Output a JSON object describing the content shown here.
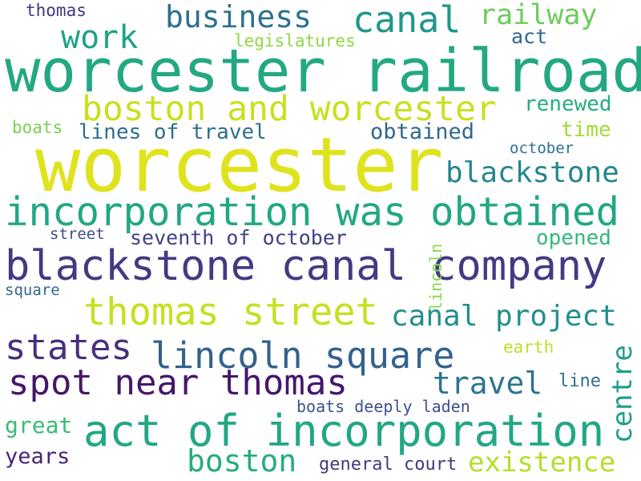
{
  "words": [
    {
      "text": "worcester",
      "color": "#dfe31e"
    },
    {
      "text": "worcester railroad",
      "color": "#23a883"
    },
    {
      "text": "blackstone canal company",
      "color": "#433a83"
    },
    {
      "text": "incorporation was obtained",
      "color": "#22a785"
    },
    {
      "text": "act of incorporation",
      "color": "#22a785"
    },
    {
      "text": "boston and worcester",
      "color": "#c8e020"
    },
    {
      "text": "thomas street",
      "color": "#c5e021"
    },
    {
      "text": "lincoln square",
      "color": "#33628d"
    },
    {
      "text": "spot near thomas",
      "color": "#46166b"
    },
    {
      "text": "states",
      "color": "#472f7d"
    },
    {
      "text": "canal",
      "color": "#1f988b"
    },
    {
      "text": "business",
      "color": "#2c718e"
    },
    {
      "text": "railway",
      "color": "#6ccd5a"
    },
    {
      "text": "work",
      "color": "#1fa287"
    },
    {
      "text": "blackstone",
      "color": "#24878e"
    },
    {
      "text": "boston",
      "color": "#25ac82"
    },
    {
      "text": "existence",
      "color": "#b5de2b"
    },
    {
      "text": "travel",
      "color": "#2a768e"
    },
    {
      "text": "canal project",
      "color": "#218f8d"
    },
    {
      "text": "centre",
      "color": "#1f9e89"
    },
    {
      "text": "renewed",
      "color": "#26ad81"
    },
    {
      "text": "time",
      "color": "#a2da37"
    },
    {
      "text": "obtained",
      "color": "#31668e"
    },
    {
      "text": "lines of travel",
      "color": "#2e6e8e"
    },
    {
      "text": "seventh of october",
      "color": "#424086"
    },
    {
      "text": "opened",
      "color": "#35b779"
    },
    {
      "text": "great",
      "color": "#3bbb75"
    },
    {
      "text": "years",
      "color": "#482576"
    },
    {
      "text": "general court",
      "color": "#443983"
    },
    {
      "text": "boats deeply laden",
      "color": "#3b528b"
    },
    {
      "text": "legislatures",
      "color": "#8fd744"
    },
    {
      "text": "act",
      "color": "#31688e"
    },
    {
      "text": "thomas",
      "color": "#453581"
    },
    {
      "text": "boats",
      "color": "#7ad151"
    },
    {
      "text": "october",
      "color": "#2c738e"
    },
    {
      "text": "street",
      "color": "#3c4f8a"
    },
    {
      "text": "square",
      "color": "#31688e"
    },
    {
      "text": "lincoln",
      "color": "#8bd646"
    },
    {
      "text": "earth",
      "color": "#bddf26"
    },
    {
      "text": "line",
      "color": "#2e6f8e"
    }
  ]
}
